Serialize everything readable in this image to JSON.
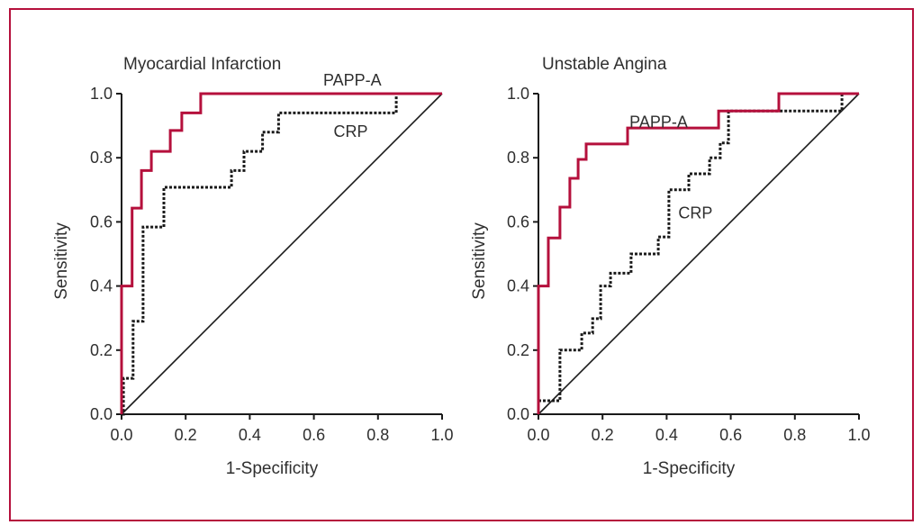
{
  "figure": {
    "frame_color": "#b5103c"
  },
  "chart_data": [
    {
      "type": "line",
      "title": "Myocardial Infarction",
      "xlabel": "1-Specificity",
      "ylabel": "Sensitivity",
      "xlim": [
        0,
        1
      ],
      "ylim": [
        0,
        1
      ],
      "xticks": [
        "0.0",
        "0.2",
        "0.4",
        "0.6",
        "0.8",
        "1.0"
      ],
      "yticks": [
        "0.0",
        "0.2",
        "0.4",
        "0.6",
        "0.8",
        "1.0"
      ],
      "grid": false,
      "reference_line": {
        "x": [
          0,
          1
        ],
        "y": [
          0,
          1
        ],
        "color": "#1a1a1a"
      },
      "series": [
        {
          "name": "PAPP-A",
          "color": "#b5103c",
          "style": "solid",
          "step": true,
          "x": [
            0.0,
            0.0,
            0.033,
            0.033,
            0.062,
            0.062,
            0.093,
            0.093,
            0.152,
            0.152,
            0.188,
            0.188,
            0.247,
            0.247,
            1.0
          ],
          "y": [
            0.0,
            0.4,
            0.4,
            0.643,
            0.643,
            0.76,
            0.76,
            0.82,
            0.82,
            0.885,
            0.885,
            0.94,
            0.94,
            1.0,
            1.0
          ],
          "label_pos": [
            0.72,
            1.045
          ]
        },
        {
          "name": "CRP",
          "color": "#1a1a1a",
          "style": "dotted",
          "step": true,
          "x": [
            0.0,
            0.006,
            0.006,
            0.036,
            0.036,
            0.067,
            0.067,
            0.132,
            0.132,
            0.343,
            0.343,
            0.382,
            0.382,
            0.44,
            0.44,
            0.49,
            0.49,
            0.857,
            0.857,
            1.0
          ],
          "y": [
            0.0,
            0.0,
            0.112,
            0.112,
            0.29,
            0.29,
            0.584,
            0.584,
            0.708,
            0.708,
            0.76,
            0.76,
            0.82,
            0.82,
            0.88,
            0.88,
            0.94,
            0.94,
            1.0,
            1.0
          ],
          "label_pos": [
            0.715,
            0.885
          ]
        }
      ]
    },
    {
      "type": "line",
      "title": "Unstable Angina",
      "xlabel": "1-Specificity",
      "ylabel": "Sensitivity",
      "xlim": [
        0,
        1
      ],
      "ylim": [
        0,
        1
      ],
      "xticks": [
        "0.0",
        "0.2",
        "0.4",
        "0.6",
        "0.8",
        "1.0"
      ],
      "yticks": [
        "0.0",
        "0.2",
        "0.4",
        "0.6",
        "0.8",
        "1.0"
      ],
      "grid": false,
      "reference_line": {
        "x": [
          0,
          1
        ],
        "y": [
          0,
          1
        ],
        "color": "#1a1a1a"
      },
      "series": [
        {
          "name": "PAPP-A",
          "color": "#b5103c",
          "style": "solid",
          "step": true,
          "x": [
            0.0,
            0.0,
            0.031,
            0.031,
            0.067,
            0.067,
            0.098,
            0.098,
            0.124,
            0.124,
            0.149,
            0.149,
            0.278,
            0.278,
            0.562,
            0.562,
            0.75,
            0.75,
            1.0
          ],
          "y": [
            0.0,
            0.4,
            0.4,
            0.55,
            0.55,
            0.646,
            0.646,
            0.736,
            0.736,
            0.795,
            0.795,
            0.843,
            0.843,
            0.893,
            0.893,
            0.946,
            0.946,
            1.0,
            1.0
          ],
          "label_pos": [
            0.375,
            0.915
          ]
        },
        {
          "name": "CRP",
          "color": "#1a1a1a",
          "style": "dotted",
          "step": true,
          "x": [
            0.0,
            0.0,
            0.067,
            0.067,
            0.135,
            0.135,
            0.169,
            0.169,
            0.194,
            0.194,
            0.225,
            0.225,
            0.289,
            0.289,
            0.374,
            0.374,
            0.407,
            0.407,
            0.469,
            0.469,
            0.534,
            0.534,
            0.567,
            0.567,
            0.593,
            0.593,
            0.947,
            0.947,
            1.0
          ],
          "y": [
            0.0,
            0.042,
            0.042,
            0.2,
            0.2,
            0.253,
            0.253,
            0.298,
            0.298,
            0.4,
            0.4,
            0.44,
            0.44,
            0.5,
            0.5,
            0.553,
            0.553,
            0.7,
            0.7,
            0.75,
            0.75,
            0.8,
            0.8,
            0.846,
            0.846,
            0.946,
            0.946,
            1.0,
            1.0
          ],
          "label_pos": [
            0.49,
            0.63
          ]
        }
      ]
    }
  ]
}
